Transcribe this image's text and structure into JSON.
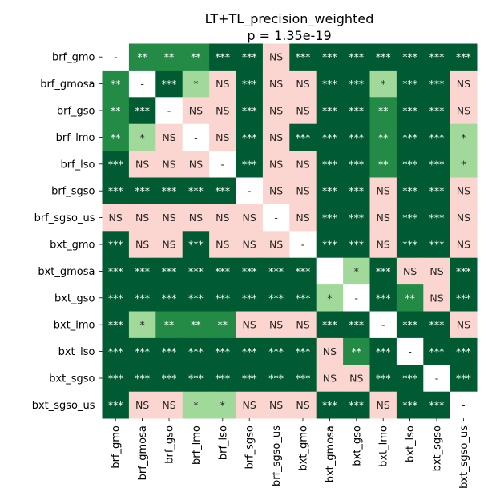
{
  "chart_data": {
    "type": "heatmap",
    "title": "LT+TL_precision_weighted",
    "subtitle": "p = 1.35e-19",
    "categories": [
      "brf_gmo",
      "brf_gmosa",
      "brf_gso",
      "brf_lmo",
      "brf_lso",
      "brf_sgso",
      "brf_sgso_us",
      "bxt_gmo",
      "bxt_gmosa",
      "bxt_gso",
      "bxt_lmo",
      "bxt_lso",
      "bxt_sgso",
      "bxt_sgso_us"
    ],
    "matrix": [
      [
        "-",
        "**",
        "**",
        "**",
        "***",
        "***",
        "NS",
        "***",
        "***",
        "***",
        "***",
        "***",
        "***",
        "***"
      ],
      [
        "**",
        "-",
        "***",
        "*",
        "NS",
        "***",
        "NS",
        "NS",
        "***",
        "***",
        "*",
        "***",
        "***",
        "NS"
      ],
      [
        "**",
        "***",
        "-",
        "NS",
        "NS",
        "***",
        "NS",
        "NS",
        "***",
        "***",
        "**",
        "***",
        "***",
        "NS"
      ],
      [
        "**",
        "*",
        "NS",
        "-",
        "NS",
        "***",
        "NS",
        "***",
        "***",
        "***",
        "**",
        "***",
        "***",
        "*"
      ],
      [
        "***",
        "NS",
        "NS",
        "NS",
        "-",
        "***",
        "NS",
        "NS",
        "***",
        "***",
        "**",
        "***",
        "***",
        "*"
      ],
      [
        "***",
        "***",
        "***",
        "***",
        "***",
        "-",
        "NS",
        "NS",
        "***",
        "***",
        "NS",
        "***",
        "***",
        "NS"
      ],
      [
        "NS",
        "NS",
        "NS",
        "NS",
        "NS",
        "NS",
        "-",
        "NS",
        "***",
        "***",
        "NS",
        "***",
        "***",
        "NS"
      ],
      [
        "***",
        "NS",
        "NS",
        "***",
        "NS",
        "NS",
        "NS",
        "-",
        "***",
        "***",
        "NS",
        "***",
        "***",
        "NS"
      ],
      [
        "***",
        "***",
        "***",
        "***",
        "***",
        "***",
        "***",
        "***",
        "-",
        "*",
        "***",
        "NS",
        "NS",
        "***"
      ],
      [
        "***",
        "***",
        "***",
        "***",
        "***",
        "***",
        "***",
        "***",
        "*",
        "-",
        "***",
        "**",
        "NS",
        "***"
      ],
      [
        "***",
        "*",
        "**",
        "**",
        "**",
        "NS",
        "NS",
        "NS",
        "***",
        "***",
        "-",
        "***",
        "***",
        "NS"
      ],
      [
        "***",
        "***",
        "***",
        "***",
        "***",
        "***",
        "***",
        "***",
        "NS",
        "**",
        "***",
        "-",
        "***",
        "***"
      ],
      [
        "***",
        "***",
        "***",
        "***",
        "***",
        "***",
        "***",
        "***",
        "NS",
        "NS",
        "***",
        "***",
        "-",
        "***"
      ],
      [
        "***",
        "NS",
        "NS",
        "*",
        "*",
        "NS",
        "NS",
        "NS",
        "***",
        "***",
        "NS",
        "***",
        "***",
        "-"
      ]
    ],
    "colors": {
      "***": "#005a32",
      "**": "#238b45",
      "*": "#a1d99b",
      "NS": "#fbd5cf",
      "-": "#ffffff"
    },
    "text_colors": {
      "***": "#ffffff",
      "**": "#ffffff",
      "*": "#262626",
      "NS": "#262626",
      "-": "#262626"
    }
  }
}
